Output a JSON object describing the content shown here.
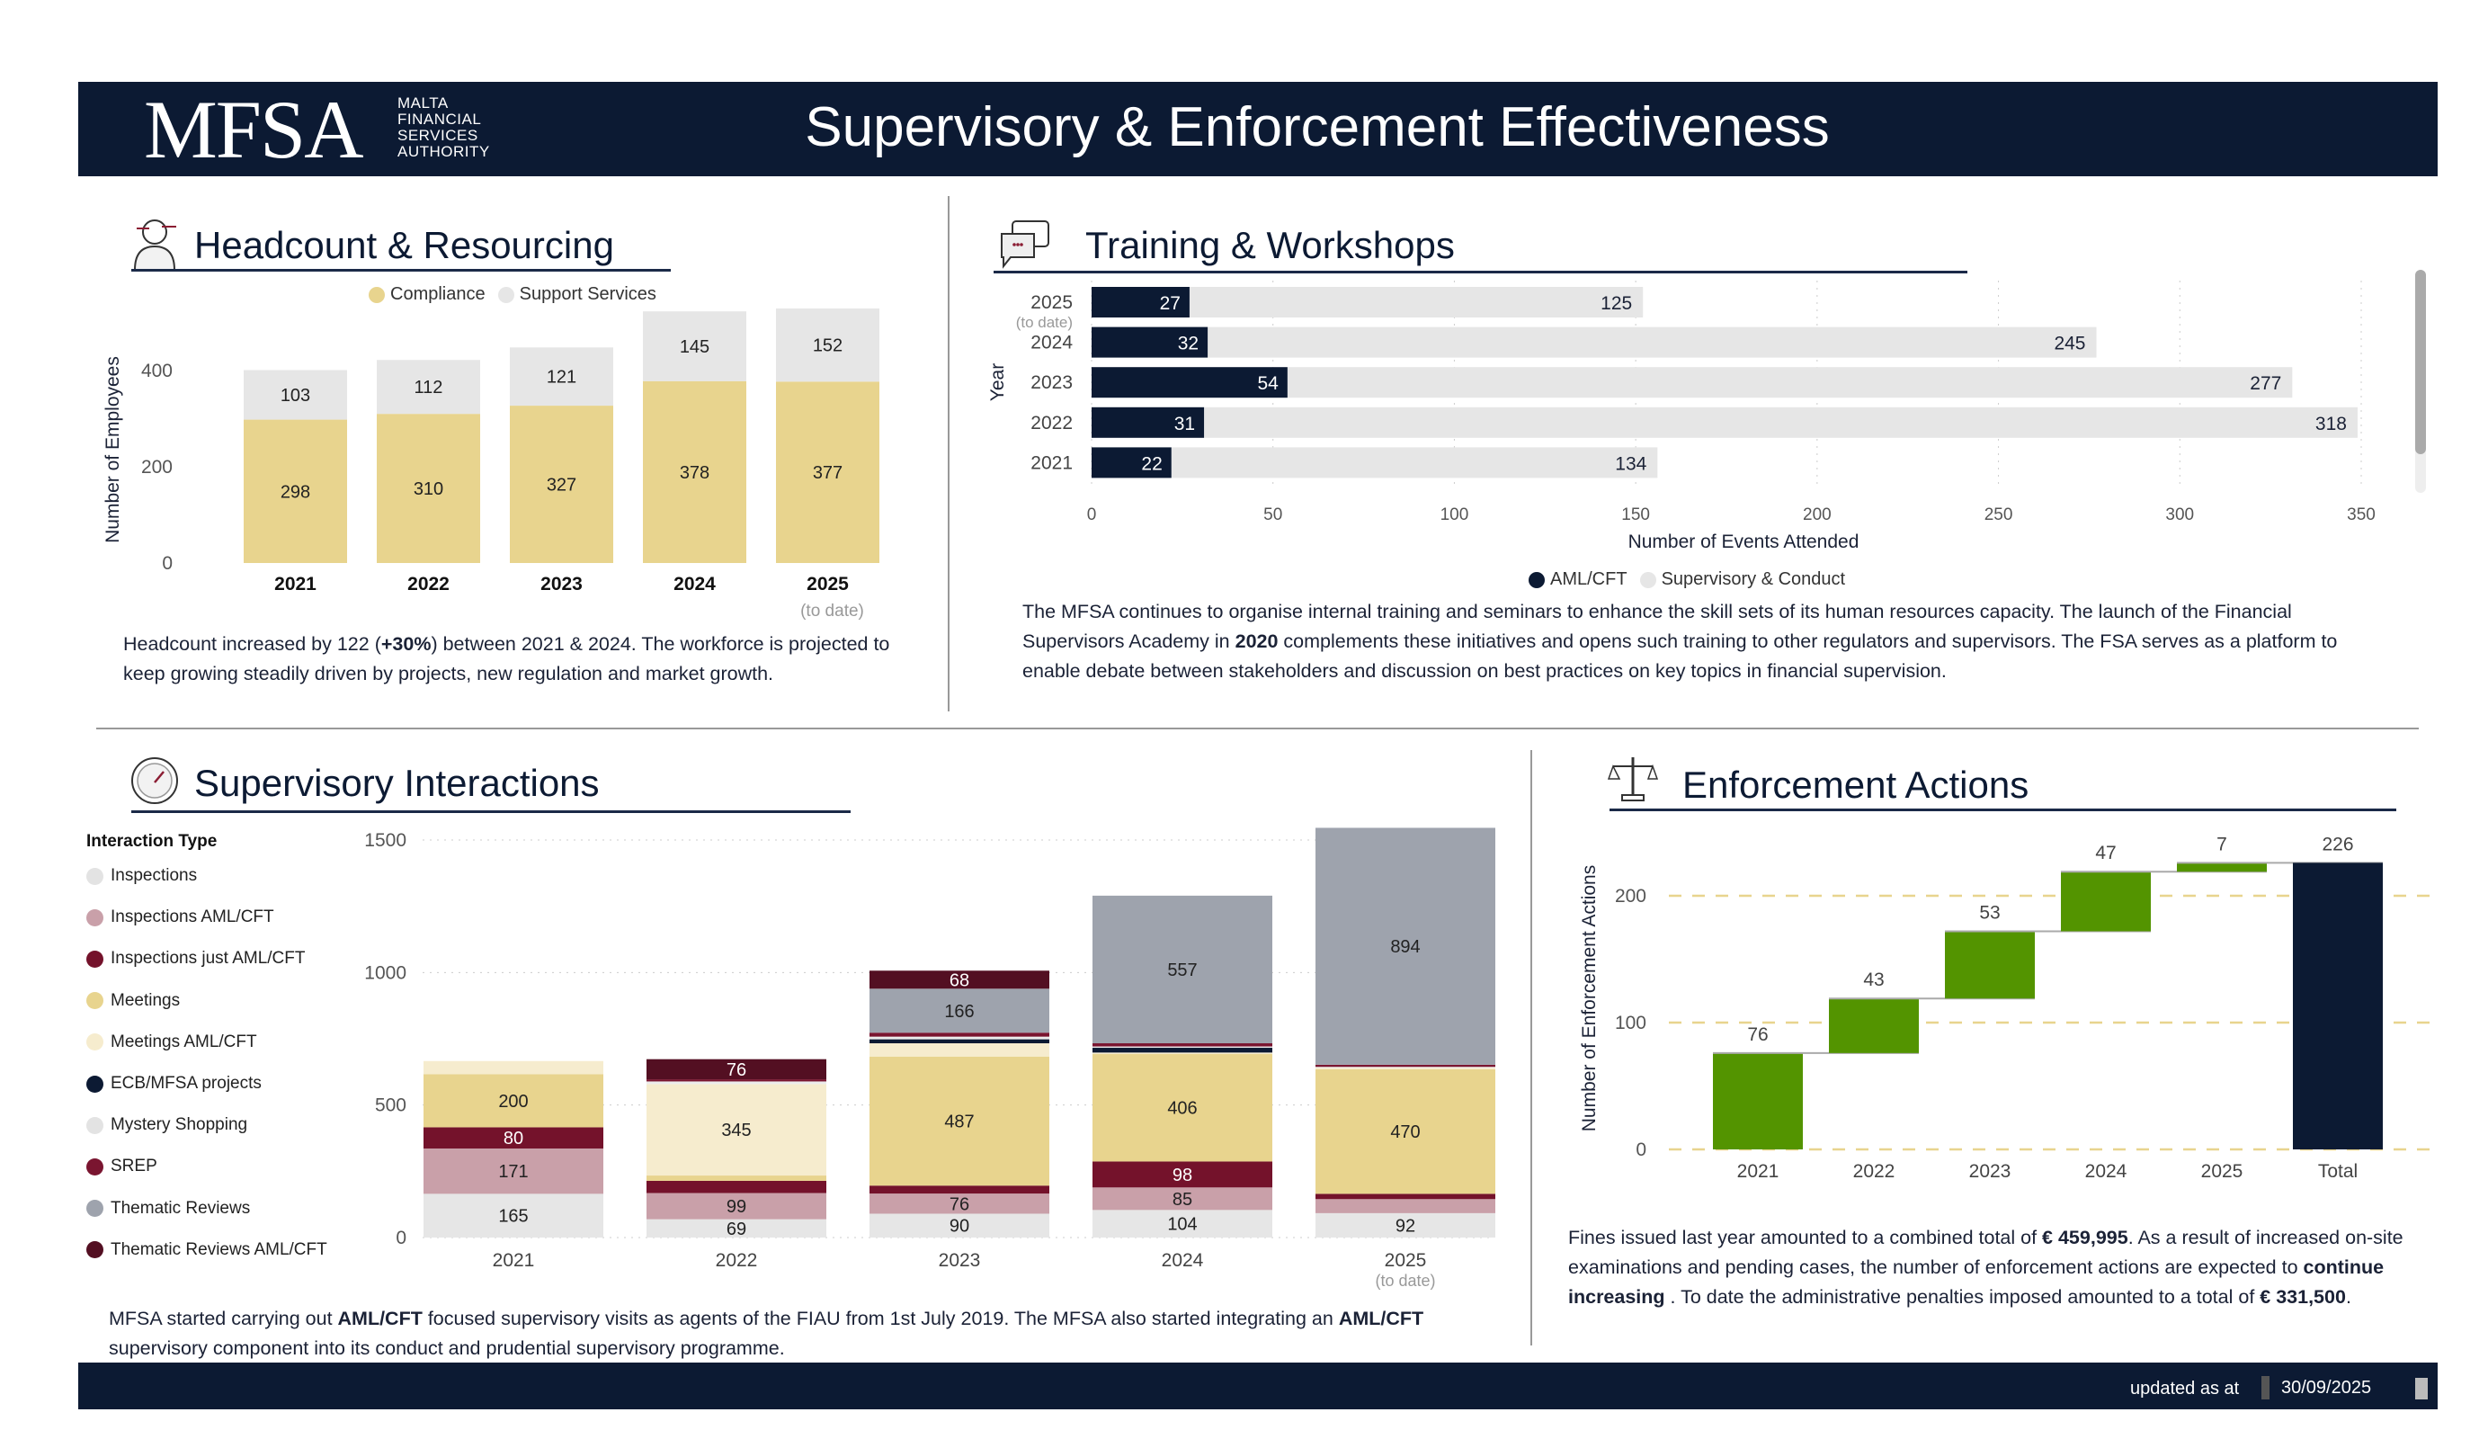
{
  "header": {
    "logo_text": "MFSA",
    "logo_subtitle": [
      "MALTA",
      "FINANCIAL",
      "SERVICES",
      "AUTHORITY"
    ],
    "title": "Supervisory & Enforcement Effectiveness"
  },
  "headcount": {
    "title": "Headcount & Resourcing",
    "icon": "person-icon",
    "legend": [
      "Compliance",
      "Support Services"
    ],
    "text": [
      "Headcount increased by 122 (",
      "+30%",
      ") between 2021 & 2024. The workforce is projected to keep growing steadily driven by projects, new regulation and market growth."
    ]
  },
  "training": {
    "title": "Training & Workshops",
    "icon": "chat-icon",
    "legend": [
      "AML/CFT",
      "Supervisory & Conduct"
    ],
    "text": [
      "The MFSA continues to organise internal training and seminars to enhance the skill sets of its human resources capacity. The launch of the Financial Supervisors Academy in ",
      "2020",
      " complements these initiatives and opens such training to other regulators and supervisors. The FSA serves as a platform to enable debate between stakeholders and discussion on best practices on key topics in financial supervision."
    ]
  },
  "interactions": {
    "title": "Supervisory Interactions",
    "icon": "gauge-icon",
    "legend_title": "Interaction Type",
    "text": [
      "MFSA started carrying out ",
      "AML/CFT",
      " focused supervisory visits as agents of the FIAU from 1st July 2019. The MFSA also started integrating an ",
      "AML/CFT",
      " supervisory component into its conduct and prudential supervisory programme."
    ]
  },
  "enforcement": {
    "title": "Enforcement Actions",
    "icon": "scales-icon",
    "text": [
      "Fines issued last year amounted to a combined total of ",
      "€ 459,995",
      ". As a result of increased on-site examinations and pending cases, the number of enforcement actions are expected to ",
      "continue increasing",
      " . To date the administrative penalties imposed amounted to a total of  ",
      "€ 331,500",
      "."
    ]
  },
  "footer": {
    "updated_label": "updated as at",
    "updated_date": "30/09/2025"
  },
  "chart_data": [
    {
      "id": "headcount",
      "type": "bar",
      "stacked": true,
      "categories": [
        "2021",
        "2022",
        "2023",
        "2024",
        "2025"
      ],
      "category_note": "(to date)",
      "ylabel": "Number of Employees",
      "yticks": [
        0,
        200,
        400
      ],
      "ylim": [
        0,
        530
      ],
      "series": [
        {
          "name": "Compliance",
          "color": "#e8d48e",
          "values": [
            298,
            310,
            327,
            378,
            377
          ]
        },
        {
          "name": "Support Services",
          "color": "#e6e6e6",
          "values": [
            103,
            112,
            121,
            145,
            152
          ]
        }
      ]
    },
    {
      "id": "training",
      "type": "bar",
      "orientation": "horizontal",
      "stacked": true,
      "categories": [
        "2025",
        "2024",
        "2023",
        "2022",
        "2021"
      ],
      "category_note": "(to date)",
      "xlabel": "Number of Events Attended",
      "ylabel": "Year",
      "xticks": [
        0,
        50,
        100,
        150,
        200,
        250,
        300,
        350
      ],
      "xlim": [
        0,
        350
      ],
      "series": [
        {
          "name": "AML/CFT",
          "color": "#0c1a33",
          "values": [
            27,
            32,
            54,
            31,
            22
          ]
        },
        {
          "name": "Supervisory & Conduct",
          "color": "#e6e6e6",
          "values": [
            125,
            245,
            277,
            318,
            134
          ]
        }
      ]
    },
    {
      "id": "interactions",
      "type": "bar",
      "stacked": true,
      "categories": [
        "2021",
        "2022",
        "2023",
        "2024",
        "2025"
      ],
      "category_note": "(to date)",
      "yticks": [
        0,
        500,
        1000,
        1500
      ],
      "ylim": [
        0,
        1500
      ],
      "series": [
        {
          "name": "Inspections",
          "color": "#e6e6e6",
          "values": [
            165,
            69,
            90,
            104,
            92
          ]
        },
        {
          "name": "Inspections  AML/CFT",
          "color": "#c9a0a9",
          "values": [
            171,
            99,
            76,
            85,
            53
          ]
        },
        {
          "name": "Inspections just AML/CFT",
          "color": "#74122b",
          "values": [
            80,
            46,
            30,
            98,
            20
          ]
        },
        {
          "name": "Meetings",
          "color": "#e8d48e",
          "values": [
            200,
            20,
            487,
            406,
            470
          ]
        },
        {
          "name": "Meetings  AML/CFT",
          "color": "#f6ecce",
          "values": [
            50,
            345,
            50,
            5,
            6
          ]
        },
        {
          "name": "ECB/MFSA projects",
          "color": "#0c1a33",
          "values": [
            0,
            0,
            15,
            18,
            0
          ]
        },
        {
          "name": "Mystery Shopping",
          "color": "#ececec",
          "values": [
            0,
            10,
            10,
            5,
            3
          ]
        },
        {
          "name": "SREP",
          "color": "#7a1530",
          "values": [
            0,
            8,
            15,
            12,
            8
          ]
        },
        {
          "name": "Thematic Reviews",
          "color": "#9ea3ad",
          "values": [
            0,
            0,
            166,
            557,
            894
          ]
        },
        {
          "name": "Thematic Reviews   AML/CFT",
          "color": "#530f22",
          "values": [
            0,
            76,
            68,
            0,
            0
          ]
        }
      ]
    },
    {
      "id": "enforcement",
      "type": "bar",
      "subtype": "waterfall",
      "categories": [
        "2021",
        "2022",
        "2023",
        "2024",
        "2025",
        "Total"
      ],
      "values": [
        76,
        43,
        53,
        47,
        7,
        226
      ],
      "ylabel": "Number of Enforcement Actions",
      "yticks": [
        0,
        100,
        200
      ],
      "ylim": [
        0,
        240
      ],
      "colors": {
        "increase": "#539400",
        "total": "#0c1a33",
        "grid": "#e8d48e"
      }
    }
  ]
}
